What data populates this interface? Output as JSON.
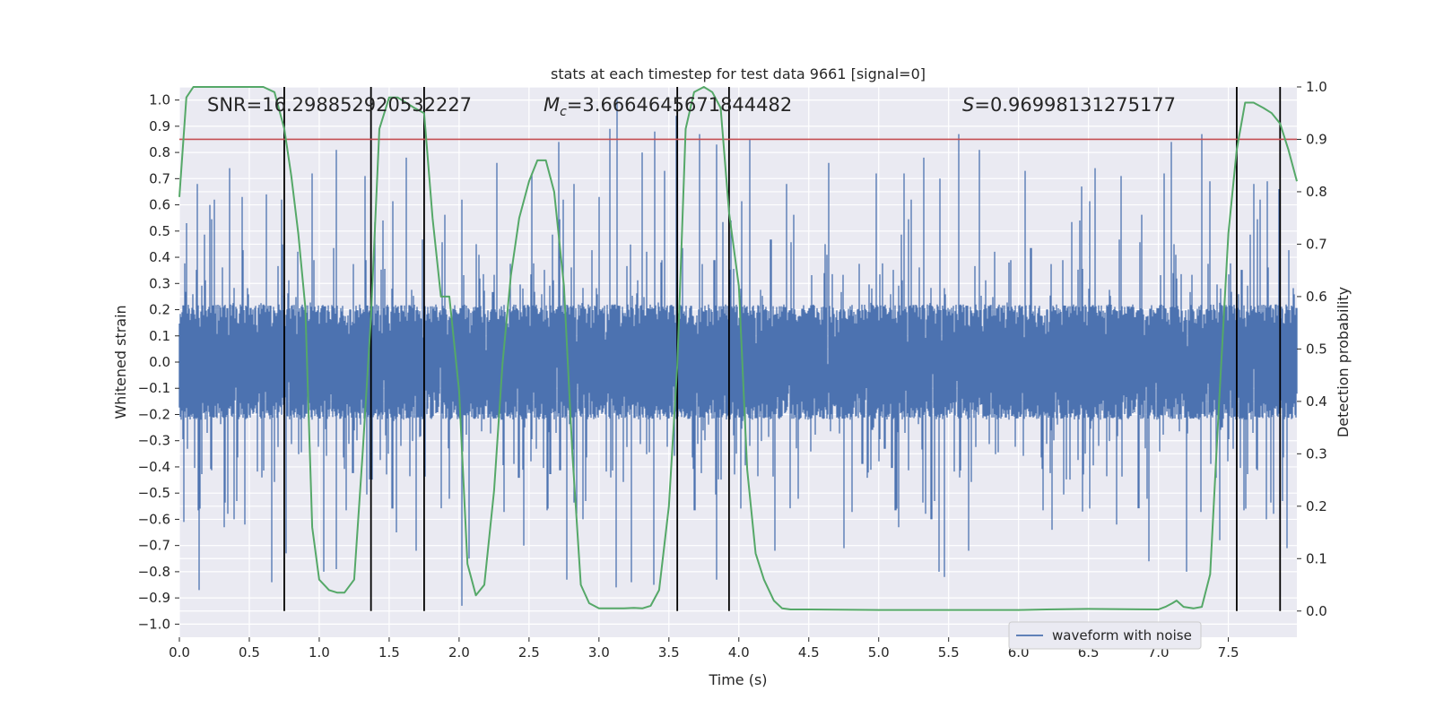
{
  "chart_data": {
    "type": "line",
    "title": "stats at each timestep for test data 9661 [signal=0]",
    "xlabel": "Time (s)",
    "ylabel_left": "Whitened strain",
    "ylabel_right": "Detection probability",
    "xlim": [
      0.0,
      7.99
    ],
    "ylim_left": [
      -1.05,
      1.05
    ],
    "ylim_right": [
      -0.05,
      1.0
    ],
    "x_ticks": [
      "0.0",
      "0.5",
      "1.0",
      "1.5",
      "2.0",
      "2.5",
      "3.0",
      "3.5",
      "4.0",
      "4.5",
      "5.0",
      "5.5",
      "6.0",
      "6.5",
      "7.0",
      "7.5"
    ],
    "y_left_ticks": [
      "1.0",
      "0.9",
      "0.8",
      "0.7",
      "0.6",
      "0.5",
      "0.4",
      "0.3",
      "0.2",
      "0.1",
      "0.0",
      "−0.1",
      "−0.2",
      "−0.3",
      "−0.4",
      "−0.5",
      "−0.6",
      "−0.7",
      "−0.8",
      "−0.9",
      "−1.0"
    ],
    "y_right_ticks": [
      "1.0",
      "0.9",
      "0.8",
      "0.7",
      "0.6",
      "0.5",
      "0.4",
      "0.3",
      "0.2",
      "0.1",
      "0.0"
    ],
    "grid": true,
    "annotations": {
      "snr": "SNR=16.298852920532227",
      "mc_symbol": "M",
      "mc_sub": "c",
      "mc_value": "=3.6664645671844482",
      "s_symbol": "S",
      "s_value": "=0.96998131275177"
    },
    "legend": {
      "label": "waveform with noise",
      "position": "lower-right"
    },
    "threshold": {
      "axis": "right",
      "value": 0.9,
      "color": "#c44e52"
    },
    "vertical_lines": [
      0.75,
      1.37,
      1.75,
      3.56,
      3.93,
      7.56,
      7.87
    ],
    "detection_probability": {
      "color": "#55a868",
      "x": [
        0.0,
        0.05,
        0.1,
        0.2,
        0.3,
        0.4,
        0.5,
        0.6,
        0.68,
        0.75,
        0.8,
        0.85,
        0.9,
        0.95,
        1.0,
        1.07,
        1.13,
        1.18,
        1.25,
        1.31,
        1.37,
        1.43,
        1.5,
        1.56,
        1.62,
        1.68,
        1.75,
        1.81,
        1.87,
        1.93,
        2.0,
        2.06,
        2.12,
        2.18,
        2.25,
        2.31,
        2.37,
        2.43,
        2.5,
        2.56,
        2.62,
        2.68,
        2.75,
        2.81,
        2.87,
        2.93,
        3.0,
        3.06,
        3.12,
        3.18,
        3.25,
        3.31,
        3.37,
        3.43,
        3.5,
        3.56,
        3.62,
        3.68,
        3.75,
        3.81,
        3.87,
        3.93,
        4.0,
        4.06,
        4.12,
        4.18,
        4.25,
        4.31,
        4.37,
        4.5,
        5.0,
        5.5,
        6.0,
        6.2,
        6.5,
        7.0,
        7.05,
        7.1,
        7.13,
        7.18,
        7.25,
        7.31,
        7.37,
        7.43,
        7.5,
        7.56,
        7.62,
        7.68,
        7.75,
        7.81,
        7.87,
        7.93,
        7.99
      ],
      "y": [
        0.79,
        0.98,
        1.0,
        1.0,
        1.0,
        1.0,
        1.0,
        1.0,
        0.99,
        0.92,
        0.83,
        0.72,
        0.58,
        0.16,
        0.06,
        0.04,
        0.035,
        0.035,
        0.06,
        0.3,
        0.56,
        0.92,
        0.98,
        0.98,
        0.97,
        0.96,
        0.95,
        0.75,
        0.6,
        0.6,
        0.42,
        0.09,
        0.03,
        0.05,
        0.23,
        0.47,
        0.64,
        0.75,
        0.82,
        0.86,
        0.86,
        0.8,
        0.62,
        0.3,
        0.05,
        0.015,
        0.005,
        0.005,
        0.005,
        0.005,
        0.006,
        0.005,
        0.01,
        0.04,
        0.2,
        0.47,
        0.92,
        0.99,
        1.0,
        0.99,
        0.96,
        0.76,
        0.62,
        0.27,
        0.11,
        0.06,
        0.02,
        0.005,
        0.003,
        0.003,
        0.002,
        0.002,
        0.002,
        0.003,
        0.004,
        0.003,
        0.008,
        0.015,
        0.02,
        0.008,
        0.005,
        0.008,
        0.07,
        0.38,
        0.72,
        0.88,
        0.97,
        0.97,
        0.96,
        0.95,
        0.93,
        0.88,
        0.82
      ]
    },
    "strain": {
      "series_name": "waveform with noise",
      "color": "#4c72b0",
      "sample_rate": 2048,
      "typical_range": [
        -0.42,
        0.45
      ],
      "peaks_pos": [
        [
          0.05,
          0.53
        ],
        [
          0.13,
          0.68
        ],
        [
          0.22,
          0.6
        ],
        [
          0.36,
          0.74
        ],
        [
          0.45,
          0.63
        ],
        [
          0.62,
          0.64
        ],
        [
          0.73,
          0.62
        ],
        [
          0.95,
          0.72
        ],
        [
          1.12,
          0.81
        ],
        [
          1.33,
          0.71
        ],
        [
          1.62,
          0.78
        ],
        [
          2.02,
          0.62
        ],
        [
          2.27,
          0.76
        ],
        [
          2.52,
          0.72
        ],
        [
          2.71,
          0.84
        ],
        [
          2.82,
          0.68
        ],
        [
          3.0,
          0.63
        ],
        [
          3.08,
          0.89
        ],
        [
          3.13,
          1.0
        ],
        [
          3.31,
          0.8
        ],
        [
          3.4,
          0.88
        ],
        [
          3.47,
          0.73
        ],
        [
          3.55,
          0.94
        ],
        [
          3.72,
          0.87
        ],
        [
          3.84,
          0.83
        ],
        [
          4.08,
          0.85
        ],
        [
          4.34,
          0.68
        ],
        [
          4.64,
          0.76
        ],
        [
          4.98,
          0.72
        ],
        [
          5.18,
          0.72
        ],
        [
          5.32,
          0.78
        ],
        [
          5.44,
          0.7
        ],
        [
          5.57,
          0.87
        ],
        [
          5.72,
          0.81
        ],
        [
          6.05,
          0.73
        ],
        [
          6.45,
          0.67
        ],
        [
          6.55,
          0.74
        ],
        [
          6.73,
          0.71
        ],
        [
          7.04,
          0.72
        ],
        [
          7.09,
          0.84
        ],
        [
          7.31,
          0.87
        ],
        [
          7.37,
          0.69
        ],
        [
          7.68,
          0.68
        ],
        [
          7.78,
          0.69
        ],
        [
          7.86,
          0.66
        ]
      ],
      "peaks_neg": [
        [
          0.03,
          -0.61
        ],
        [
          0.14,
          -0.87
        ],
        [
          0.32,
          -0.63
        ],
        [
          0.47,
          -0.62
        ],
        [
          0.66,
          -0.84
        ],
        [
          0.76,
          -0.73
        ],
        [
          1.03,
          -0.8
        ],
        [
          1.12,
          -0.79
        ],
        [
          1.55,
          -0.65
        ],
        [
          1.69,
          -0.72
        ],
        [
          2.02,
          -0.93
        ],
        [
          2.07,
          -0.75
        ],
        [
          2.46,
          -0.7
        ],
        [
          2.77,
          -0.83
        ],
        [
          3.12,
          -0.86
        ],
        [
          3.23,
          -0.84
        ],
        [
          3.39,
          -0.85
        ],
        [
          3.84,
          -0.83
        ],
        [
          4.26,
          -0.72
        ],
        [
          4.75,
          -0.71
        ],
        [
          5.14,
          -0.63
        ],
        [
          5.43,
          -0.8
        ],
        [
          5.47,
          -0.82
        ],
        [
          5.64,
          -0.72
        ],
        [
          6.24,
          -0.64
        ],
        [
          6.46,
          -0.57
        ],
        [
          6.7,
          -0.62
        ],
        [
          6.93,
          -0.76
        ],
        [
          7.2,
          -0.8
        ],
        [
          7.44,
          -0.68
        ],
        [
          7.77,
          -0.6
        ],
        [
          7.92,
          -0.71
        ]
      ]
    }
  }
}
